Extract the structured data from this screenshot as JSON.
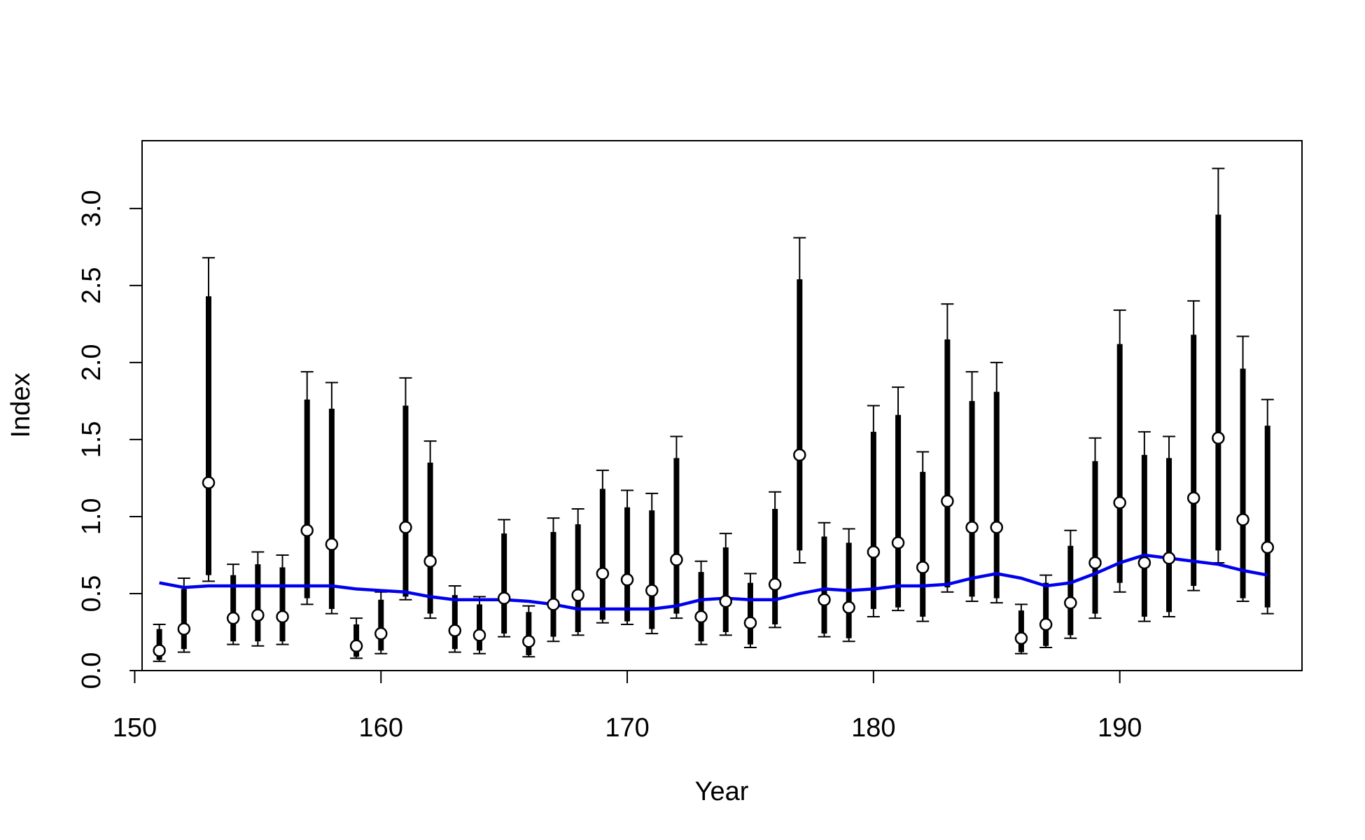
{
  "chart_data": {
    "type": "scatter",
    "title": "",
    "xlabel": "Year",
    "ylabel": "Index",
    "xlim": [
      150.3,
      197.4
    ],
    "ylim": [
      0,
      3.44
    ],
    "x_ticks": [
      150,
      160,
      170,
      180,
      190
    ],
    "x_tick_labels": [
      "150",
      "160",
      "170",
      "180",
      "190"
    ],
    "y_ticks": [
      0,
      0.5,
      1,
      1.5,
      2,
      2.5,
      3
    ],
    "y_tick_labels": [
      "0.0",
      "0.5",
      "1.0",
      "1.5",
      "2.0",
      "2.5",
      "3.0"
    ],
    "grid": false,
    "legend": "none",
    "colors": {
      "points": "#000000",
      "point_fill": "#ffffff",
      "intervals": "#000000",
      "trend": "#0000ee"
    },
    "series": [
      {
        "role": "observed-index",
        "x": [
          151,
          152,
          153,
          154,
          155,
          156,
          157,
          158,
          159,
          160,
          161,
          162,
          163,
          164,
          165,
          166,
          167,
          168,
          169,
          170,
          171,
          172,
          173,
          174,
          175,
          176,
          177,
          178,
          179,
          180,
          181,
          182,
          183,
          184,
          185,
          186,
          187,
          188,
          189,
          190,
          191,
          192,
          193,
          194,
          195,
          196
        ],
        "y": [
          0.13,
          0.27,
          1.22,
          0.34,
          0.36,
          0.35,
          0.91,
          0.82,
          0.16,
          0.24,
          0.93,
          0.71,
          0.26,
          0.23,
          0.47,
          0.19,
          0.43,
          0.49,
          0.63,
          0.59,
          0.52,
          0.72,
          0.35,
          0.45,
          0.31,
          0.56,
          1.4,
          0.46,
          0.41,
          0.77,
          0.83,
          0.67,
          1.1,
          0.93,
          0.93,
          0.21,
          0.3,
          0.44,
          0.7,
          1.09,
          0.7,
          0.73,
          1.12,
          1.51,
          0.98,
          0.8
        ],
        "inner_low": [
          0.07,
          0.14,
          0.62,
          0.19,
          0.19,
          0.19,
          0.47,
          0.4,
          0.09,
          0.13,
          0.48,
          0.37,
          0.14,
          0.13,
          0.24,
          0.1,
          0.22,
          0.25,
          0.33,
          0.32,
          0.27,
          0.37,
          0.19,
          0.25,
          0.17,
          0.3,
          0.78,
          0.24,
          0.21,
          0.4,
          0.41,
          0.35,
          0.54,
          0.48,
          0.47,
          0.12,
          0.16,
          0.23,
          0.37,
          0.57,
          0.35,
          0.38,
          0.55,
          0.78,
          0.47,
          0.41
        ],
        "inner_high": [
          0.27,
          0.53,
          2.43,
          0.62,
          0.69,
          0.67,
          1.76,
          1.7,
          0.3,
          0.46,
          1.72,
          1.35,
          0.49,
          0.43,
          0.89,
          0.38,
          0.9,
          0.95,
          1.18,
          1.06,
          1.04,
          1.38,
          0.64,
          0.8,
          0.57,
          1.05,
          2.54,
          0.87,
          0.83,
          1.55,
          1.66,
          1.29,
          2.15,
          1.75,
          1.81,
          0.39,
          0.57,
          0.81,
          1.36,
          2.12,
          1.4,
          1.38,
          2.18,
          2.96,
          1.96,
          1.59
        ],
        "outer_low": [
          0.06,
          0.12,
          0.58,
          0.17,
          0.16,
          0.17,
          0.43,
          0.37,
          0.08,
          0.11,
          0.46,
          0.34,
          0.12,
          0.11,
          0.22,
          0.09,
          0.19,
          0.23,
          0.31,
          0.3,
          0.24,
          0.34,
          0.17,
          0.23,
          0.15,
          0.28,
          0.7,
          0.22,
          0.19,
          0.35,
          0.39,
          0.32,
          0.51,
          0.45,
          0.44,
          0.11,
          0.15,
          0.21,
          0.34,
          0.51,
          0.32,
          0.35,
          0.52,
          0.7,
          0.45,
          0.37
        ],
        "outer_high": [
          0.3,
          0.6,
          2.68,
          0.69,
          0.77,
          0.75,
          1.94,
          1.87,
          0.34,
          0.51,
          1.9,
          1.49,
          0.55,
          0.48,
          0.98,
          0.42,
          0.99,
          1.05,
          1.3,
          1.17,
          1.15,
          1.52,
          0.71,
          0.89,
          0.63,
          1.16,
          2.81,
          0.96,
          0.92,
          1.72,
          1.84,
          1.42,
          2.38,
          1.94,
          2.0,
          0.43,
          0.62,
          0.91,
          1.51,
          2.34,
          1.55,
          1.52,
          2.4,
          3.26,
          2.17,
          1.76
        ]
      },
      {
        "role": "trend-line",
        "x": [
          151,
          152,
          153,
          154,
          155,
          156,
          157,
          158,
          159,
          160,
          161,
          162,
          163,
          164,
          165,
          166,
          167,
          168,
          169,
          170,
          171,
          172,
          173,
          174,
          175,
          176,
          177,
          178,
          179,
          180,
          181,
          182,
          183,
          184,
          185,
          186,
          187,
          188,
          189,
          190,
          191,
          192,
          193,
          194,
          195,
          196
        ],
        "y": [
          0.57,
          0.54,
          0.55,
          0.55,
          0.55,
          0.55,
          0.55,
          0.55,
          0.53,
          0.52,
          0.51,
          0.48,
          0.46,
          0.46,
          0.46,
          0.45,
          0.43,
          0.4,
          0.4,
          0.4,
          0.4,
          0.42,
          0.46,
          0.47,
          0.46,
          0.46,
          0.5,
          0.53,
          0.52,
          0.53,
          0.55,
          0.55,
          0.56,
          0.6,
          0.63,
          0.6,
          0.55,
          0.57,
          0.63,
          0.7,
          0.75,
          0.73,
          0.71,
          0.69,
          0.65,
          0.62
        ]
      }
    ]
  }
}
